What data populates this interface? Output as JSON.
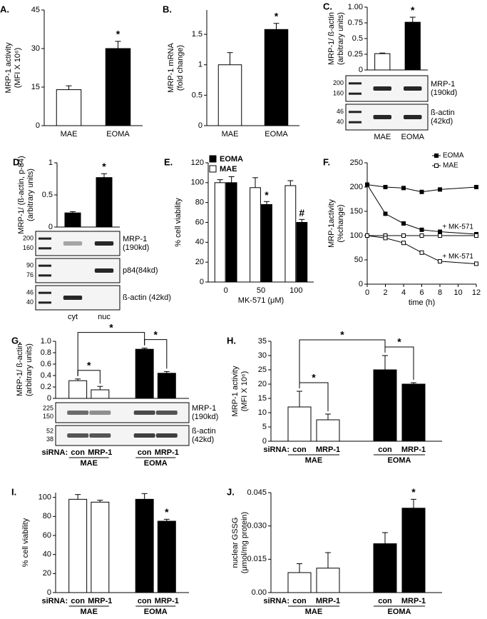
{
  "chart_data": [
    {
      "type": "bar",
      "panel": "A.",
      "ylabel": [
        "MRP-1 activity",
        "(MFI X 10⁶)"
      ],
      "categories": [
        "MAE",
        "EOMA"
      ],
      "values": [
        14,
        30
      ],
      "errors": [
        1.5,
        2.8
      ],
      "colors": [
        "#ffffff",
        "#000000"
      ],
      "significance": [
        null,
        "*"
      ],
      "ylim": [
        0,
        45
      ],
      "yticks": [
        0,
        15,
        30,
        45
      ]
    },
    {
      "type": "bar",
      "panel": "B.",
      "ylabel": [
        "MRP-1 mRNA",
        "(fold change)"
      ],
      "categories": [
        "MAE",
        "EOMA"
      ],
      "values": [
        1.0,
        1.58
      ],
      "errors": [
        0.2,
        0.1
      ],
      "colors": [
        "#ffffff",
        "#000000"
      ],
      "significance": [
        null,
        "*"
      ],
      "ylim": [
        0,
        1.9
      ],
      "yticks": [
        0,
        0.5,
        1,
        1.5
      ]
    },
    {
      "type": "bar",
      "panel": "C.",
      "ylabel": [
        "MRP-1/ ß-actin",
        "(arbitrary units)"
      ],
      "categories": [
        "MAE",
        "EOMA"
      ],
      "values": [
        0.26,
        0.76
      ],
      "errors": [
        0.01,
        0.08
      ],
      "colors": [
        "#ffffff",
        "#000000"
      ],
      "significance": [
        null,
        "*"
      ],
      "ylim": [
        0,
        1
      ],
      "yticks": [
        0,
        0.25,
        0.5,
        0.75,
        {
          "value": 1,
          "label": "1.00"
        }
      ],
      "blot": [
        {
          "label": [
            "MRP-1",
            "(190kd)"
          ],
          "markers": [
            "200",
            "160"
          ]
        },
        {
          "label": [
            "ß-actin",
            "(42kd)"
          ],
          "markers": [
            "46",
            "40"
          ]
        }
      ]
    },
    {
      "type": "bar",
      "panel": "D.",
      "ylabel": [
        "MRP-1/ (ß-actin, p-84)",
        "(arbitrary units)"
      ],
      "categories": [
        "cyt",
        "nuc"
      ],
      "values": [
        0.22,
        0.77
      ],
      "errors": [
        0.02,
        0.06
      ],
      "colors": [
        "#000000",
        "#000000"
      ],
      "significance": [
        null,
        "*"
      ],
      "ylim": [
        0,
        1
      ],
      "yticks": [
        0,
        0.5,
        1
      ],
      "blot": [
        {
          "label": [
            "MRP-1",
            "(190kd)"
          ],
          "markers": [
            "200",
            "160"
          ]
        },
        {
          "label": [
            "p84(84kd)"
          ],
          "markers": [
            "90",
            "76"
          ]
        },
        {
          "label": [
            "ß-actin (42kd)"
          ],
          "markers": [
            "46",
            "40"
          ]
        }
      ]
    },
    {
      "type": "grouped_bar",
      "panel": "E.",
      "ylabel": [
        "% cell viability"
      ],
      "xlabel": "MK-571 (μM)",
      "categories": [
        "0",
        "50",
        "100"
      ],
      "series": [
        {
          "name": "EOMA",
          "color": "#000000",
          "values": [
            100,
            78,
            60
          ],
          "errors": [
            6,
            3,
            3
          ],
          "significance": [
            null,
            "*",
            "#"
          ]
        },
        {
          "name": "MAE",
          "color": "#ffffff",
          "values": [
            100,
            95,
            97
          ],
          "errors": [
            3,
            10,
            5
          ],
          "significance": [
            null,
            null,
            null
          ]
        }
      ],
      "ylim": [
        0,
        120
      ],
      "yticks": [
        0,
        20,
        40,
        60,
        80,
        100,
        120
      ]
    },
    {
      "type": "line",
      "panel": "F.",
      "ylabel": [
        "MRP-1activity",
        "(%change)"
      ],
      "xlabel": "time (h)",
      "x": [
        0,
        2,
        4,
        6,
        8,
        12
      ],
      "series": [
        {
          "name": "EOMA",
          "marker": "filled",
          "values": [
            205,
            200,
            198,
            190,
            195,
            200
          ]
        },
        {
          "name": null,
          "label": "+ MK-571",
          "marker": "filled",
          "values": [
            205,
            145,
            125,
            112,
            108,
            103
          ]
        },
        {
          "name": "MAE",
          "marker": "open",
          "values": [
            100,
            100,
            100,
            100,
            100,
            100
          ]
        },
        {
          "name": null,
          "label": "+ MK-571",
          "marker": "open",
          "values": [
            100,
            95,
            85,
            65,
            47,
            42
          ]
        }
      ],
      "xlim": [
        0,
        12
      ],
      "xticks": [
        0,
        2,
        4,
        6,
        8,
        10,
        12
      ],
      "ylim": [
        0,
        250
      ],
      "yticks": [
        0,
        50,
        100,
        150,
        200,
        250
      ]
    },
    {
      "type": "bar",
      "panel": "G.",
      "ylabel": [
        "MRP-1/ ß-actin",
        "(arbitrary units)"
      ],
      "group_label": "siRNA:",
      "categories": [
        "con",
        "MRP-1",
        "con",
        "MRP-1"
      ],
      "groups": [
        "MAE",
        "EOMA"
      ],
      "values": [
        0.31,
        0.15,
        0.86,
        0.44
      ],
      "errors": [
        0.03,
        0.06,
        0.02,
        0.03
      ],
      "colors": [
        "#ffffff",
        "#ffffff",
        "#000000",
        "#000000"
      ],
      "significance": [
        null,
        null,
        null,
        null
      ],
      "bracket_labels": [
        "*",
        "*",
        "*"
      ],
      "ylim": [
        0,
        1
      ],
      "yticks": [
        0,
        0.2,
        0.4,
        0.6,
        0.8,
        {
          "value": 1,
          "label": "1.0"
        }
      ],
      "blot": [
        {
          "label": [
            "MRP-1",
            "(190kd)"
          ],
          "markers": [
            "225",
            "150"
          ]
        },
        {
          "label": [
            "ß-actin",
            "(42kd)"
          ],
          "markers": [
            "52",
            "38"
          ]
        }
      ]
    },
    {
      "type": "bar",
      "panel": "H.",
      "ylabel": [
        "MRP-1 activity",
        "(MFI X 10⁶)"
      ],
      "group_label": "siRNA:",
      "categories": [
        "con",
        "MRP-1",
        "con",
        "MRP-1"
      ],
      "groups": [
        "MAE",
        "EOMA"
      ],
      "values": [
        12,
        7.5,
        25,
        20
      ],
      "errors": [
        5.5,
        2,
        5,
        0.5
      ],
      "colors": [
        "#ffffff",
        "#ffffff",
        "#000000",
        "#000000"
      ],
      "significance": [
        null,
        null,
        null,
        null
      ],
      "bracket_labels": [
        "*",
        "*",
        "*"
      ],
      "ylim": [
        0,
        35
      ],
      "yticks": [
        0,
        5,
        10,
        15,
        20,
        25,
        30,
        35
      ]
    },
    {
      "type": "bar",
      "panel": "I.",
      "ylabel": [
        "% cell viability"
      ],
      "group_label": "siRNA:",
      "categories": [
        "con",
        "MRP-1",
        "con",
        "MRP-1"
      ],
      "groups": [
        "MAE",
        "EOMA"
      ],
      "values": [
        98,
        95,
        98,
        75
      ],
      "errors": [
        5,
        2,
        6,
        2
      ],
      "colors": [
        "#ffffff",
        "#ffffff",
        "#000000",
        "#000000"
      ],
      "significance": [
        null,
        null,
        null,
        "*"
      ],
      "ylim": [
        0,
        105
      ],
      "yticks": [
        0,
        20,
        40,
        60,
        80,
        100
      ]
    },
    {
      "type": "bar",
      "panel": "J.",
      "ylabel": [
        "nuclear GSSG",
        "(μmol/mg protein)"
      ],
      "group_label": "siRNA:",
      "categories": [
        "con",
        "MRP-1",
        "con",
        "MRP-1"
      ],
      "groups": [
        "MAE",
        "EOMA"
      ],
      "values": [
        0.009,
        0.011,
        0.022,
        0.038
      ],
      "errors": [
        0.004,
        0.007,
        0.005,
        0.004
      ],
      "colors": [
        "#ffffff",
        "#ffffff",
        "#000000",
        "#000000"
      ],
      "significance": [
        null,
        null,
        null,
        "*"
      ],
      "ylim": [
        0,
        0.045
      ],
      "yticks": [
        {
          "value": 0,
          "label": "0.00"
        },
        0.015,
        {
          "value": 0.03,
          "label": "0.030"
        },
        0.045
      ]
    }
  ]
}
